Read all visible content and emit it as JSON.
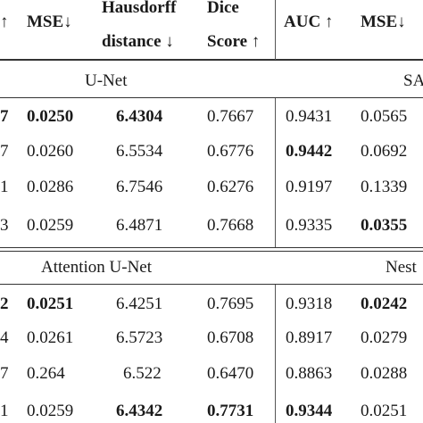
{
  "header": {
    "arrow_left": "↑",
    "mse": "MSE↓",
    "hausdorff_l1": "Hausdorff",
    "hausdorff_l2": "distance ↓",
    "dice_l1": "Dice",
    "dice_l2": "Score ↑",
    "auc": "AUC ↑",
    "mse2": "MSE↓"
  },
  "groups": [
    {
      "left_label": "U-Net",
      "right_label": "SA",
      "rows": [
        {
          "first": "7",
          "first_bold": true,
          "mse": "0.0250",
          "mse_bold": true,
          "hd": "6.4304",
          "hd_bold": true,
          "dice": "0.7667",
          "dice_bold": false,
          "auc": "0.9431",
          "auc_bold": false,
          "mse2": "0.0565",
          "mse2_bold": false
        },
        {
          "first": "7",
          "first_bold": false,
          "mse": "0.0260",
          "mse_bold": false,
          "hd": "6.5534",
          "hd_bold": false,
          "dice": "0.6776",
          "dice_bold": false,
          "auc": "0.9442",
          "auc_bold": true,
          "mse2": "0.0692",
          "mse2_bold": false
        },
        {
          "first": "1",
          "first_bold": false,
          "mse": "0.0286",
          "mse_bold": false,
          "hd": "6.7546",
          "hd_bold": false,
          "dice": "0.6276",
          "dice_bold": false,
          "auc": "0.9197",
          "auc_bold": false,
          "mse2": "0.1339",
          "mse2_bold": false
        },
        {
          "first": "3",
          "first_bold": false,
          "mse": "0.0259",
          "mse_bold": false,
          "hd": "6.4871",
          "hd_bold": false,
          "dice": "0.7668",
          "dice_bold": false,
          "auc": "0.9335",
          "auc_bold": false,
          "mse2": "0.0355",
          "mse2_bold": true
        }
      ]
    },
    {
      "left_label": "Attention U-Net",
      "right_label": "Nest",
      "rows": [
        {
          "first": "2",
          "first_bold": true,
          "mse": "0.0251",
          "mse_bold": true,
          "hd": "6.4251",
          "hd_bold": false,
          "dice": "0.7695",
          "dice_bold": false,
          "auc": "0.9318",
          "auc_bold": false,
          "mse2": "0.0242",
          "mse2_bold": true
        },
        {
          "first": "4",
          "first_bold": false,
          "mse": "0.0261",
          "mse_bold": false,
          "hd": "6.5723",
          "hd_bold": false,
          "dice": "0.6708",
          "dice_bold": false,
          "auc": "0.8917",
          "auc_bold": false,
          "mse2": "0.0279",
          "mse2_bold": false
        },
        {
          "first": "7",
          "first_bold": false,
          "mse": "0.264",
          "mse_bold": false,
          "hd": "6.522",
          "hd_bold": false,
          "dice": "0.6470",
          "dice_bold": false,
          "auc": "0.8863",
          "auc_bold": false,
          "mse2": "0.0288",
          "mse2_bold": false
        },
        {
          "first": "1",
          "first_bold": false,
          "mse": "0.0259",
          "mse_bold": false,
          "hd": "6.4342",
          "hd_bold": true,
          "dice": "0.7731",
          "dice_bold": true,
          "auc": "0.9344",
          "auc_bold": true,
          "mse2": "0.0251",
          "mse2_bold": false
        }
      ]
    }
  ]
}
